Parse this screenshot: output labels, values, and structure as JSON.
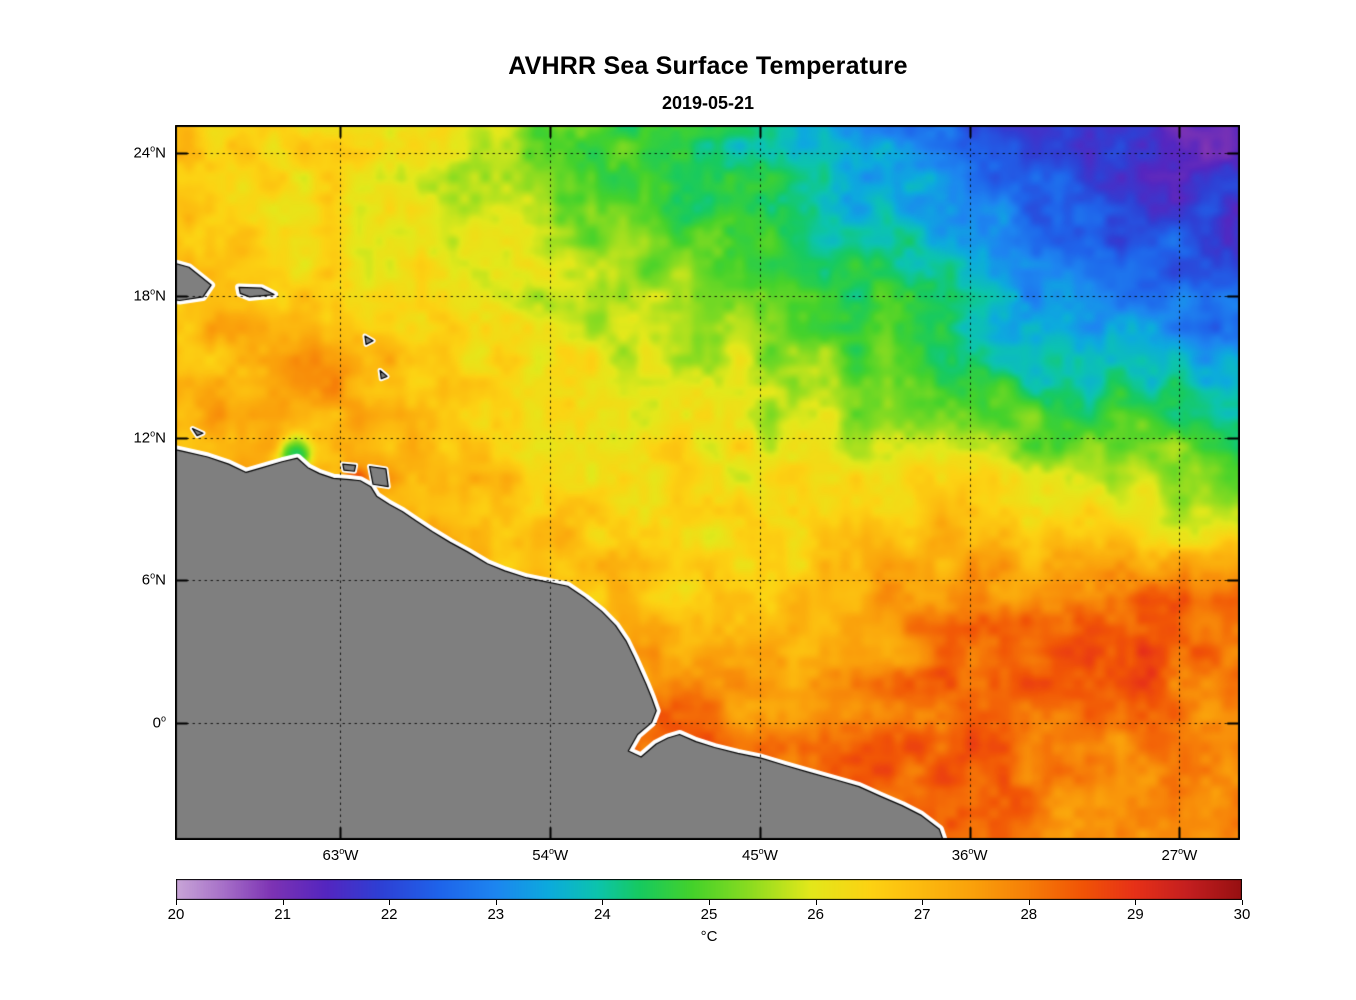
{
  "title": "AVHRR Sea Surface Temperature",
  "subtitle": "2019-05-21",
  "axes": {
    "lat_ticks": [
      {
        "value": 24,
        "text": "24",
        "suffix": "N"
      },
      {
        "value": 18,
        "text": "18",
        "suffix": "N"
      },
      {
        "value": 12,
        "text": "12",
        "suffix": "N"
      },
      {
        "value": 6,
        "text": "6",
        "suffix": "N"
      },
      {
        "value": 0,
        "text": "0",
        "suffix": ""
      }
    ],
    "lon_ticks": [
      {
        "value": 63,
        "text": "63",
        "suffix": "W"
      },
      {
        "value": 54,
        "text": "54",
        "suffix": "W"
      },
      {
        "value": 45,
        "text": "45",
        "suffix": "W"
      },
      {
        "value": 36,
        "text": "36",
        "suffix": "W"
      },
      {
        "value": 27,
        "text": "27",
        "suffix": "W"
      }
    ]
  },
  "colorbar": {
    "unit": "°C",
    "min": 20,
    "max": 30,
    "tick_labels": [
      "20",
      "21",
      "22",
      "23",
      "24",
      "25",
      "26",
      "27",
      "28",
      "29",
      "30"
    ]
  },
  "chart_data": {
    "type": "heatmap",
    "title": "AVHRR Sea Surface Temperature",
    "subtitle": "2019-05-21",
    "units": "°C",
    "value_range": [
      20,
      30
    ],
    "extent": {
      "lon_west": 70.1,
      "lon_east": 24.4,
      "lat_north": 25.2,
      "lat_south": -4.95
    },
    "land_color": "#7f7f7f",
    "coast_halo_color": "#ffffff",
    "coast_line_color": "#000000",
    "grid_on": true,
    "colormap": [
      [
        20.0,
        "#c9a6d8"
      ],
      [
        20.45,
        "#a66fc8"
      ],
      [
        20.9,
        "#7d33b4"
      ],
      [
        21.4,
        "#5526c0"
      ],
      [
        21.9,
        "#2f3fd4"
      ],
      [
        22.45,
        "#1f63ea"
      ],
      [
        23.0,
        "#1d86f0"
      ],
      [
        23.5,
        "#0cabdd"
      ],
      [
        23.95,
        "#0cc4ae"
      ],
      [
        24.35,
        "#17ca60"
      ],
      [
        24.85,
        "#45d22b"
      ],
      [
        25.4,
        "#8edc20"
      ],
      [
        25.95,
        "#e3e81b"
      ],
      [
        26.5,
        "#fcd313"
      ],
      [
        27.0,
        "#fcba0f"
      ],
      [
        27.5,
        "#faa00b"
      ],
      [
        28.0,
        "#f67e08"
      ],
      [
        28.5,
        "#f15506"
      ],
      [
        29.0,
        "#e73118"
      ],
      [
        29.5,
        "#c41f20"
      ],
      [
        30.0,
        "#971012"
      ]
    ],
    "grid": {
      "lons": [
        70,
        66.25,
        62.5,
        58.75,
        55,
        51.25,
        47.5,
        43.75,
        40,
        36.25,
        32.5,
        28.75,
        25
      ],
      "lats": [
        25.3,
        21.93,
        18.57,
        15.2,
        11.83,
        8.47,
        5.1,
        1.73,
        -1.63,
        -5.0
      ],
      "sst_values": [
        [
          26.8,
          26.6,
          26.3,
          26.0,
          25.4,
          24.7,
          24.3,
          24.0,
          23.2,
          22.4,
          21.9,
          21.6,
          21.5
        ],
        [
          26.9,
          26.5,
          26.2,
          25.9,
          25.5,
          24.9,
          24.5,
          24.1,
          23.6,
          23.0,
          22.3,
          22.0,
          21.9
        ],
        [
          27.0,
          26.7,
          26.4,
          26.1,
          25.8,
          25.4,
          25.5,
          25.0,
          24.4,
          23.8,
          23.1,
          22.6,
          22.2
        ],
        [
          27.2,
          27.0,
          27.3,
          26.6,
          26.2,
          26.0,
          25.8,
          25.4,
          25.0,
          24.3,
          23.8,
          23.6,
          23.2
        ],
        [
          27.3,
          27.1,
          27.3,
          27.0,
          26.5,
          26.2,
          26.2,
          26.0,
          25.7,
          25.8,
          25.2,
          25.3,
          24.6
        ],
        [
          27.4,
          27.3,
          27.3,
          27.1,
          26.8,
          26.6,
          26.4,
          26.3,
          26.6,
          27.0,
          26.3,
          26.2,
          25.7
        ],
        [
          27.5,
          27.4,
          27.4,
          27.2,
          27.0,
          26.8,
          26.7,
          27.0,
          27.3,
          27.8,
          28.0,
          28.2,
          28.1
        ],
        [
          27.6,
          27.5,
          27.5,
          27.4,
          27.8,
          27.6,
          27.4,
          27.5,
          27.9,
          28.3,
          28.5,
          28.3,
          28.0
        ],
        [
          27.7,
          27.6,
          27.6,
          27.5,
          27.7,
          28.0,
          28.2,
          27.9,
          28.2,
          28.5,
          28.0,
          27.9,
          27.6
        ],
        [
          27.7,
          27.7,
          27.6,
          27.6,
          27.7,
          27.9,
          28.2,
          28.3,
          28.3,
          28.4,
          28.0,
          27.7,
          27.6
        ]
      ]
    },
    "anomalies": [
      {
        "lon": 64.95,
        "lat": 11.25,
        "r": 0.75,
        "d": -2.8
      },
      {
        "lon": 62.3,
        "lat": 10.3,
        "r": 0.5,
        "d": 1.3
      },
      {
        "lon": 63.6,
        "lat": 15.2,
        "r": 1.3,
        "d": 0.5
      },
      {
        "lon": 48.6,
        "lat": 0.9,
        "r": 1.5,
        "d": 0.7
      },
      {
        "lon": 29.8,
        "lat": 3.2,
        "r": 2.4,
        "d": 0.45
      },
      {
        "lon": 26.2,
        "lat": 23.9,
        "r": 2.3,
        "d": -0.4
      }
    ],
    "land": {
      "mainland": [
        [
          71.0,
          11.7
        ],
        [
          69.8,
          11.45
        ],
        [
          68.7,
          11.2
        ],
        [
          67.8,
          10.9
        ],
        [
          67.05,
          10.55
        ],
        [
          66.35,
          10.75
        ],
        [
          65.5,
          11.0
        ],
        [
          64.85,
          11.15
        ],
        [
          64.4,
          10.75
        ],
        [
          63.9,
          10.5
        ],
        [
          63.3,
          10.3
        ],
        [
          62.6,
          10.25
        ],
        [
          62.15,
          10.2
        ],
        [
          61.7,
          9.95
        ],
        [
          61.45,
          9.55
        ],
        [
          60.9,
          9.2
        ],
        [
          60.35,
          8.9
        ],
        [
          59.75,
          8.5
        ],
        [
          59.05,
          8.05
        ],
        [
          58.3,
          7.6
        ],
        [
          57.55,
          7.2
        ],
        [
          56.7,
          6.7
        ],
        [
          55.95,
          6.4
        ],
        [
          55.0,
          6.1
        ],
        [
          54.0,
          5.9
        ],
        [
          53.25,
          5.75
        ],
        [
          52.5,
          5.25
        ],
        [
          51.8,
          4.7
        ],
        [
          51.2,
          4.1
        ],
        [
          50.75,
          3.45
        ],
        [
          50.4,
          2.75
        ],
        [
          50.15,
          2.2
        ],
        [
          49.9,
          1.65
        ],
        [
          49.65,
          1.05
        ],
        [
          49.45,
          0.5
        ],
        [
          49.65,
          0.0
        ],
        [
          50.25,
          -0.5
        ],
        [
          50.65,
          -1.2
        ],
        [
          50.1,
          -1.45
        ],
        [
          49.45,
          -0.9
        ],
        [
          48.95,
          -0.65
        ],
        [
          48.45,
          -0.5
        ],
        [
          47.75,
          -0.8
        ],
        [
          46.95,
          -1.05
        ],
        [
          45.95,
          -1.3
        ],
        [
          44.95,
          -1.5
        ],
        [
          43.95,
          -1.8
        ],
        [
          42.9,
          -2.1
        ],
        [
          41.8,
          -2.4
        ],
        [
          40.75,
          -2.7
        ],
        [
          39.85,
          -3.1
        ],
        [
          38.9,
          -3.5
        ],
        [
          38.1,
          -3.9
        ],
        [
          37.3,
          -4.5
        ],
        [
          36.95,
          -5.5
        ],
        [
          71.0,
          -5.5
        ]
      ],
      "islands": [
        {
          "name": "hispaniola",
          "pts": [
            [
              70.6,
              19.5
            ],
            [
              69.5,
              19.2
            ],
            [
              68.55,
              18.45
            ],
            [
              68.9,
              17.95
            ],
            [
              69.9,
              17.8
            ],
            [
              70.6,
              17.9
            ]
          ]
        },
        {
          "name": "puerto-rico",
          "pts": [
            [
              67.35,
              18.35
            ],
            [
              66.4,
              18.32
            ],
            [
              65.85,
              18.05
            ],
            [
              66.9,
              17.95
            ],
            [
              67.3,
              18.1
            ]
          ]
        },
        {
          "name": "margarita",
          "pts": [
            [
              62.9,
              10.9
            ],
            [
              62.35,
              10.85
            ],
            [
              62.4,
              10.6
            ],
            [
              62.85,
              10.65
            ]
          ]
        },
        {
          "name": "trinidad",
          "pts": [
            [
              61.75,
              10.8
            ],
            [
              61.05,
              10.7
            ],
            [
              60.95,
              9.95
            ],
            [
              61.6,
              10.05
            ]
          ]
        },
        {
          "name": "guadeloupe",
          "pts": [
            [
              61.95,
              16.3
            ],
            [
              61.6,
              16.1
            ],
            [
              61.9,
              15.95
            ]
          ]
        },
        {
          "name": "martinique",
          "pts": [
            [
              61.3,
              14.85
            ],
            [
              61.0,
              14.6
            ],
            [
              61.25,
              14.5
            ]
          ]
        },
        {
          "name": "curacao",
          "pts": [
            [
              69.35,
              12.4
            ],
            [
              68.9,
              12.2
            ],
            [
              69.15,
              12.1
            ]
          ]
        }
      ]
    }
  }
}
